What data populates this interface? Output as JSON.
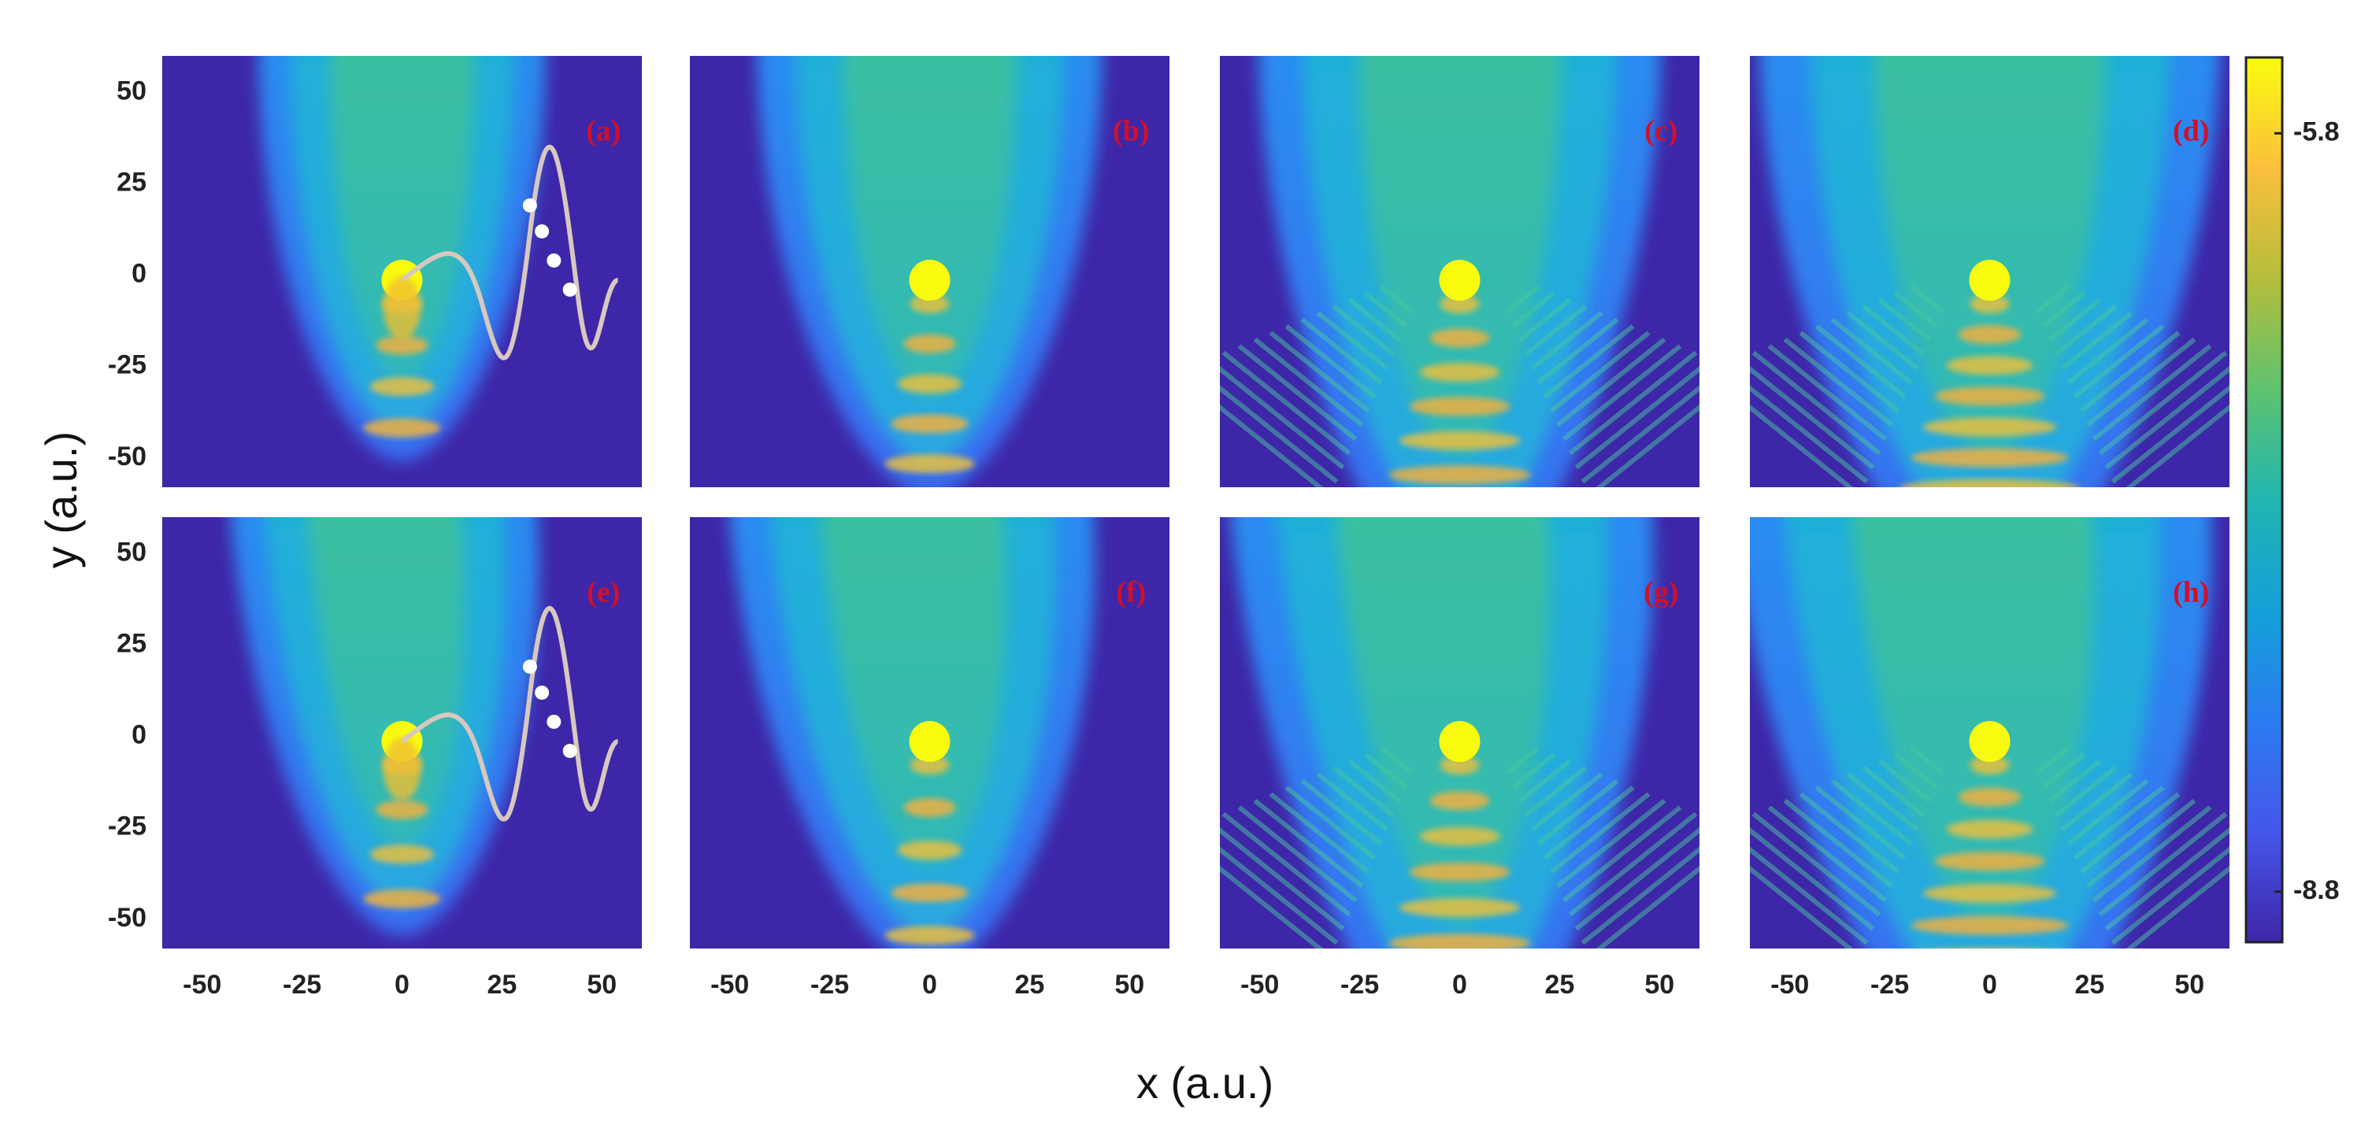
{
  "chart_data": [
    {
      "type": "heatmap",
      "label": "(a)",
      "xlim": [
        -60,
        60
      ],
      "ylim": [
        -58,
        60
      ],
      "yticks": [
        50,
        25,
        0,
        -25,
        -50
      ]
    },
    {
      "type": "heatmap",
      "label": "(b)",
      "xlim": [
        -60,
        60
      ],
      "ylim": [
        -58,
        60
      ]
    },
    {
      "type": "heatmap",
      "label": "(c)",
      "xlim": [
        -60,
        60
      ],
      "ylim": [
        -58,
        60
      ]
    },
    {
      "type": "heatmap",
      "label": "(d)",
      "xlim": [
        -60,
        60
      ],
      "ylim": [
        -58,
        60
      ]
    },
    {
      "type": "heatmap",
      "label": "(e)",
      "xlim": [
        -60,
        60
      ],
      "ylim": [
        -58,
        60
      ],
      "xticks": [
        -50,
        -25,
        0,
        25,
        50
      ],
      "yticks": [
        50,
        25,
        0,
        -25,
        -50
      ]
    },
    {
      "type": "heatmap",
      "label": "(f)",
      "xlim": [
        -60,
        60
      ],
      "ylim": [
        -58,
        60
      ],
      "xticks": [
        -50,
        -25,
        0,
        25,
        50
      ]
    },
    {
      "type": "heatmap",
      "label": "(g)",
      "xlim": [
        -60,
        60
      ],
      "ylim": [
        -58,
        60
      ],
      "xticks": [
        -50,
        -25,
        0,
        25,
        50
      ]
    },
    {
      "type": "heatmap",
      "label": "(h)",
      "xlim": [
        -60,
        60
      ],
      "ylim": [
        -58,
        60
      ],
      "xticks": [
        -50,
        -25,
        0,
        25,
        50
      ]
    },
    {
      "type": "colorbar",
      "lim": [
        -9,
        -5.5
      ],
      "ticks": [
        -5.8,
        -8.8
      ],
      "colors": [
        "#f9fb0e",
        "#fbbf3c",
        "#b5bd3c",
        "#5fc26f",
        "#21b5b0",
        "#13a0d8",
        "#2b7cf0",
        "#4556ea",
        "#3e26a8"
      ]
    }
  ],
  "x_label": "x (a.u.)",
  "y_label": "y (a.u.)"
}
